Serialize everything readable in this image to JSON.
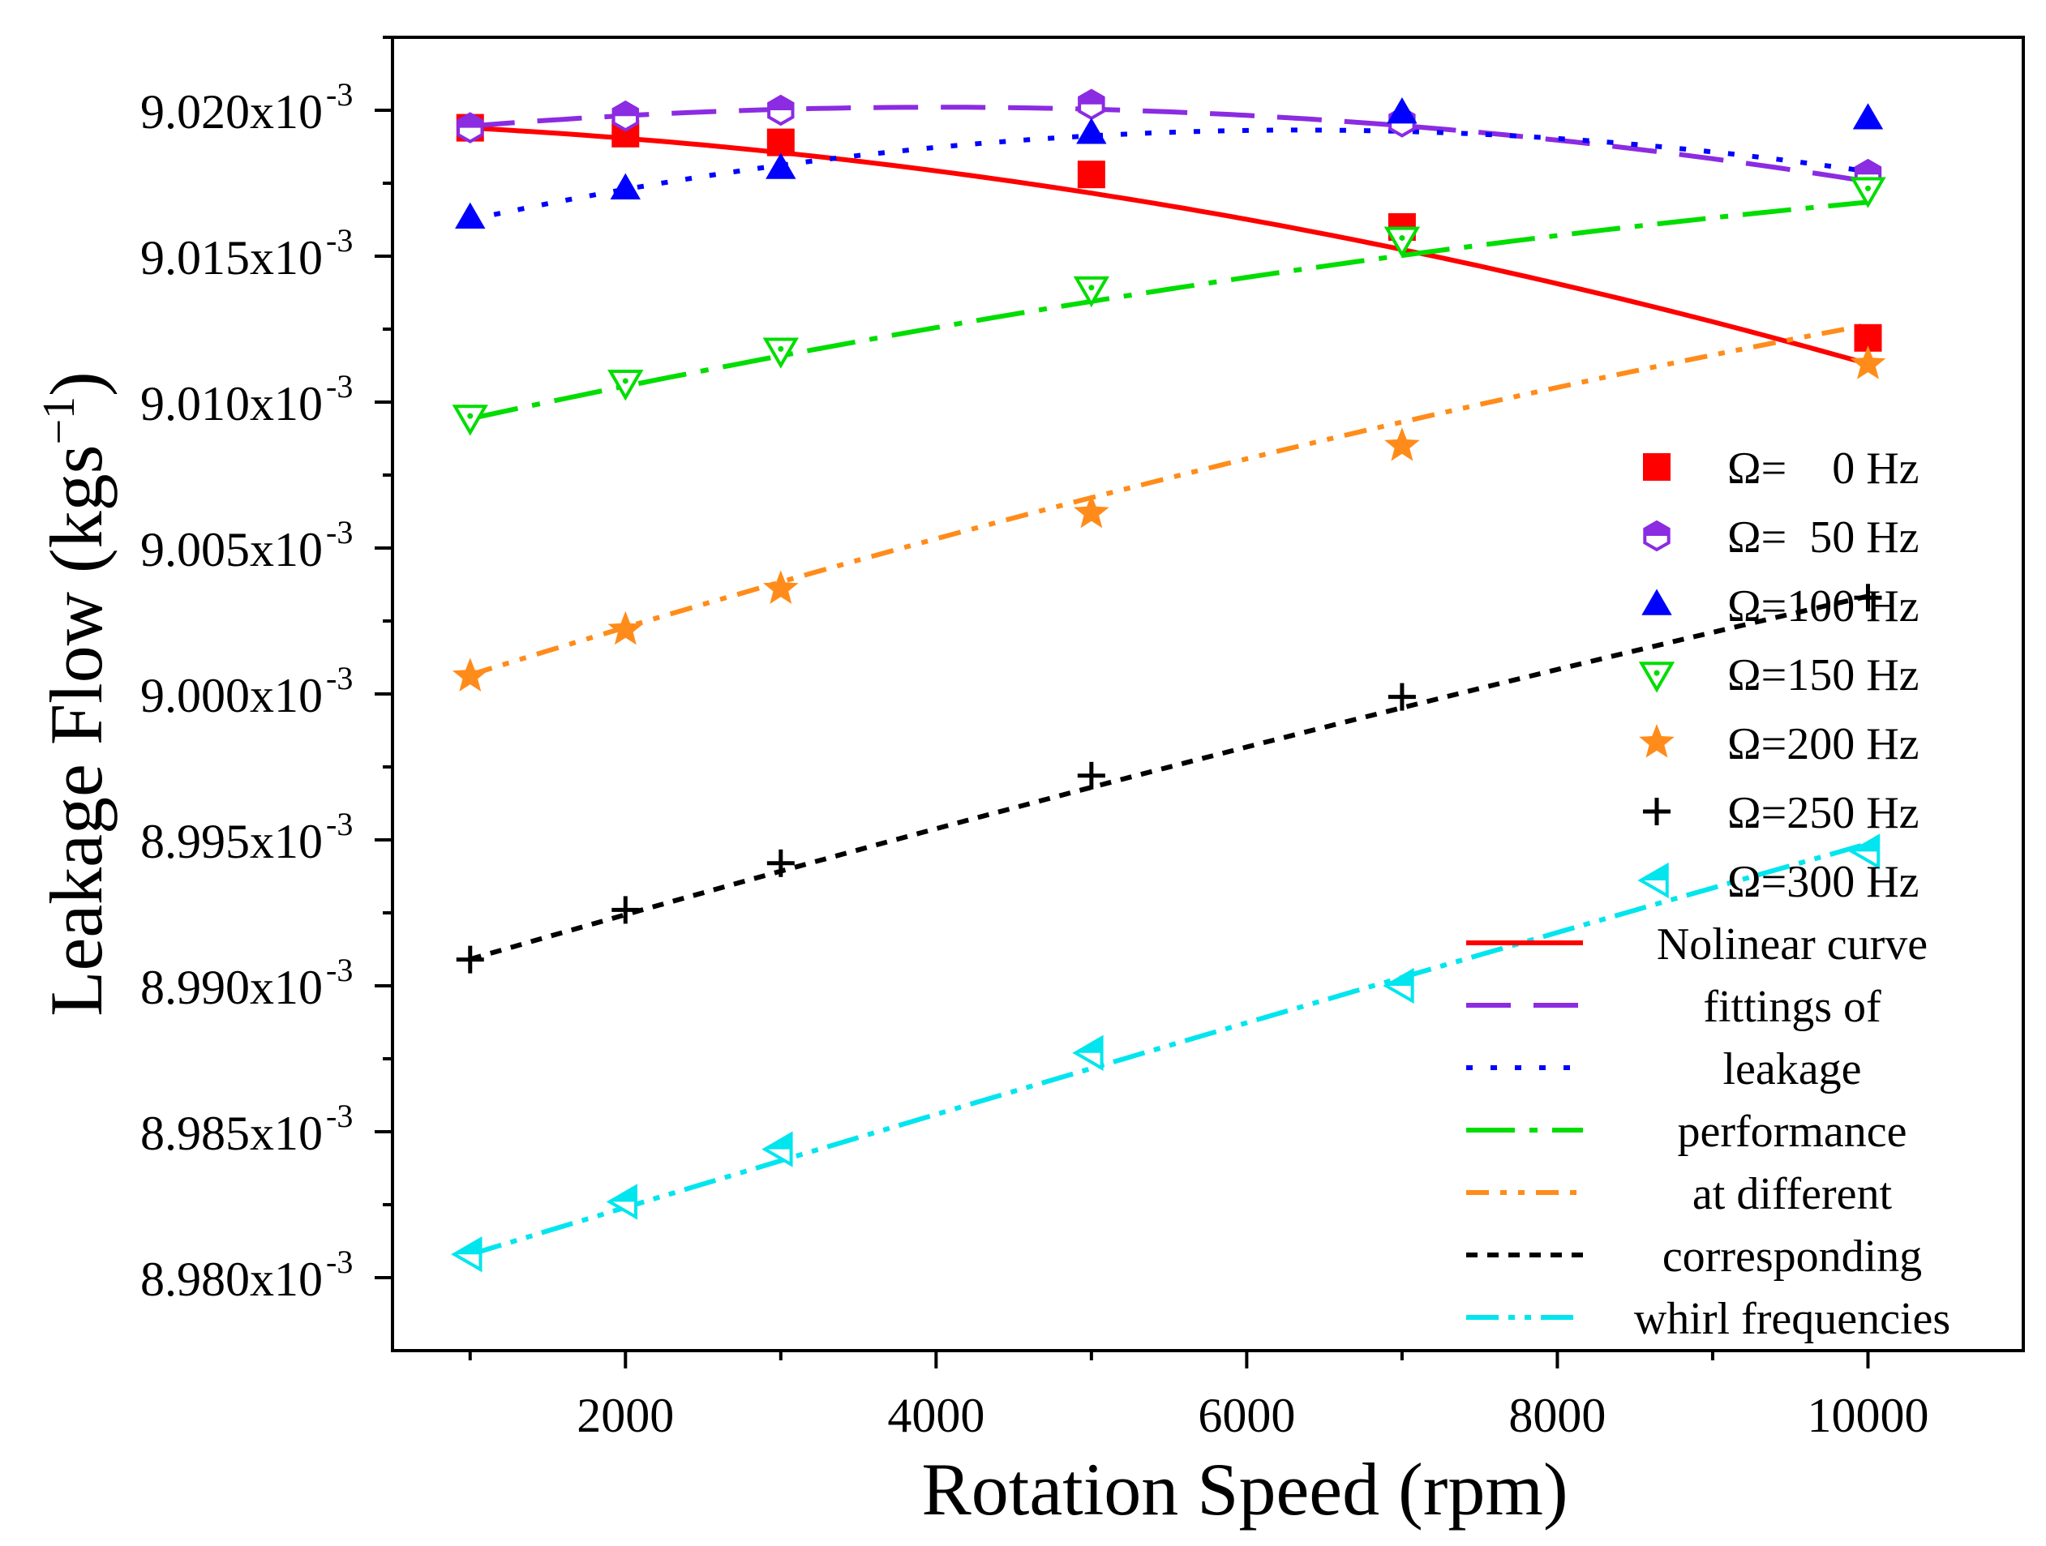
{
  "chart_data": {
    "type": "line",
    "xlabel": "Rotation Speed (rpm)",
    "ylabel": "Leakage Flow (kgs",
    "ylabel_sup": "−1",
    "ylabel_close": ")",
    "xlim": [
      500,
      11000
    ],
    "ylim": [
      8.9775,
      9.0225
    ],
    "xticks": [
      2000,
      4000,
      6000,
      8000,
      10000
    ],
    "xtick_labels": [
      "2000",
      "4000",
      "6000",
      "8000",
      "10000"
    ],
    "yticks": [
      8.98,
      8.985,
      8.99,
      8.995,
      9.0,
      9.005,
      9.01,
      9.015,
      9.02
    ],
    "ytick_labels": [
      {
        "base": "8.980x10",
        "exp": "-3"
      },
      {
        "base": "8.985x10",
        "exp": "-3"
      },
      {
        "base": "8.990x10",
        "exp": "-3"
      },
      {
        "base": "8.995x10",
        "exp": "-3"
      },
      {
        "base": "9.000x10",
        "exp": "-3"
      },
      {
        "base": "9.005x10",
        "exp": "-3"
      },
      {
        "base": "9.010x10",
        "exp": "-3"
      },
      {
        "base": "9.015x10",
        "exp": "-3"
      },
      {
        "base": "9.020x10",
        "exp": "-3"
      }
    ],
    "x": [
      1000,
      2000,
      3000,
      5000,
      7000,
      10000
    ],
    "series": [
      {
        "name": "Ω=    0 Hz",
        "color": "#ff0000",
        "marker": "square",
        "values": [
          9.0194,
          9.0192,
          9.0189,
          9.0178,
          9.016,
          9.0122
        ]
      },
      {
        "name": "Ω=  50 Hz",
        "color": "#8b2be2",
        "marker": "hexagon",
        "values": [
          9.0194,
          9.0198,
          9.02,
          9.0202,
          9.0196,
          9.0178
        ]
      },
      {
        "name": "Ω=100 Hz",
        "color": "#0000ff",
        "marker": "triangle-up",
        "values": [
          9.0163,
          9.0173,
          9.018,
          9.0192,
          9.0199,
          9.0197
        ]
      },
      {
        "name": "Ω=150 Hz",
        "color": "#00dd00",
        "marker": "triangle-down-open",
        "values": [
          9.0095,
          9.0107,
          9.0118,
          9.0139,
          9.0156,
          9.0173
        ]
      },
      {
        "name": "Ω=200 Hz",
        "color": "#ff8c1a",
        "marker": "star",
        "values": [
          9.0006,
          9.0022,
          9.0036,
          9.0062,
          9.0085,
          9.0113
        ]
      },
      {
        "name": "Ω=250 Hz",
        "color": "#000000",
        "marker": "plus",
        "values": [
          8.9909,
          8.9926,
          8.9942,
          8.9972,
          8.9999,
          9.0033
        ]
      },
      {
        "name": "Ω=300 Hz",
        "color": "#00e5ee",
        "marker": "triangle-left-half",
        "values": [
          8.9808,
          8.9826,
          8.9844,
          8.9877,
          8.99,
          8.9946
        ]
      }
    ],
    "fits": [
      {
        "color": "#ff0000",
        "dash": "",
        "label": "Nolinear curve",
        "coeffs": [
          9.01961,
          -1.5e-07,
          -6.8e-11
        ]
      },
      {
        "color": "#8b2be2",
        "dash": "55 28",
        "label": "fittings of",
        "coeffs": [
          9.01896,
          5.7e-07,
          -7.1e-11
        ]
      },
      {
        "color": "#0000ff",
        "dash": "8 22",
        "label": "leakage",
        "coeffs": [
          9.015,
          1.36e-06,
          -1.07e-10
        ]
      },
      {
        "color": "#00dd00",
        "dash": "60 18 10 18",
        "label": "performance",
        "coeffs": [
          9.00825,
          1.22e-06,
          -3.6e-11
        ]
      },
      {
        "color": "#ff8c1a",
        "dash": "28 14 8 14 8 14",
        "label": "at different",
        "coeffs": [
          8.99895,
          1.74e-06,
          -3.7e-11
        ]
      },
      {
        "color": "#000000",
        "dash": "14 12",
        "label": "corresponding",
        "coeffs": [
          8.98935,
          1.58e-06,
          -1.8e-11
        ]
      },
      {
        "color": "#00e5ee",
        "dash": "40 12 8 12 8 12",
        "label": "whirl frequencies",
        "coeffs": [
          8.97917,
          1.63e-06,
          -6e-12
        ]
      }
    ],
    "legend_position": "right"
  }
}
